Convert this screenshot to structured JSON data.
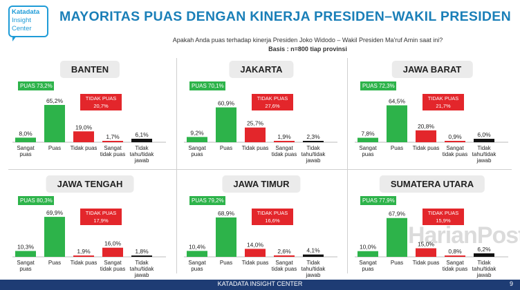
{
  "header": {
    "logo_lines": [
      "Katadata",
      "Insight",
      "Center"
    ],
    "title": "MAYORITAS PUAS DENGAN KINERJA PRESIDEN–WAKIL PRESIDEN",
    "question": "Apakah Anda puas terhadap kinerja Presiden Joko Widodo – Wakil Presiden Ma'ruf Amin saat ini?",
    "basis": "Basis : n=800 tiap provinsi"
  },
  "colors": {
    "green": "#2db34a",
    "red": "#e3262b",
    "black": "#111111",
    "title_blue": "#1a7fb8",
    "footer_navy": "#1e3c74"
  },
  "chart_data": [
    {
      "type": "bar",
      "title": "BANTEN",
      "categories": [
        "Sangat puas",
        "Puas",
        "Tidak puas",
        "Sangat tidak puas",
        "Tidak tahu/tidak jawab"
      ],
      "values": [
        8.0,
        65.2,
        19.0,
        1.7,
        6.1
      ],
      "value_labels": [
        "8,0%",
        "65,2%",
        "19,0%",
        "1,7%",
        "6,1%"
      ],
      "puas_label": "PUAS 73,2%",
      "tidak_puas_label": [
        "TIDAK PUAS",
        "20,7%"
      ]
    },
    {
      "type": "bar",
      "title": "JAKARTA",
      "categories": [
        "Sangat puas",
        "Puas",
        "Tidak puas",
        "Sangat tidak puas",
        "Tidak tahu/tidak jawab"
      ],
      "values": [
        9.2,
        60.9,
        25.7,
        1.9,
        2.3
      ],
      "value_labels": [
        "9,2%",
        "60,9%",
        "25,7%",
        "1,9%",
        "2,3%"
      ],
      "puas_label": "PUAS 70,1%",
      "tidak_puas_label": [
        "TIDAK PUAS",
        "27,6%"
      ]
    },
    {
      "type": "bar",
      "title": "JAWA BARAT",
      "categories": [
        "Sangat puas",
        "Puas",
        "Tidak puas",
        "Sangat tidak puas",
        "Tidak tahu/tidak jawab"
      ],
      "values": [
        7.8,
        64.5,
        20.8,
        0.9,
        6.0
      ],
      "value_labels": [
        "7,8%",
        "64,5%",
        "20,8%",
        "0,9%",
        "6,0%"
      ],
      "puas_label": "PUAS 72,3%",
      "tidak_puas_label": [
        "TIDAK PUAS",
        "21,7%"
      ]
    },
    {
      "type": "bar",
      "title": "JAWA TENGAH",
      "categories": [
        "Sangat puas",
        "Puas",
        "Tidak puas",
        "Sangat tidak puas",
        "Tidak tahu/tidak jawab"
      ],
      "values": [
        10.3,
        69.9,
        1.9,
        16.0,
        1.8
      ],
      "value_labels": [
        "10,3%",
        "69,9%",
        "1,9%",
        "16,0%",
        "1,8%"
      ],
      "puas_label": "PUAS 80,3%",
      "tidak_puas_label": [
        "TIDAK PUAS",
        "17,9%"
      ]
    },
    {
      "type": "bar",
      "title": "JAWA TIMUR",
      "categories": [
        "Sangat puas",
        "Puas",
        "Tidak puas",
        "Sangat tidak puas",
        "Tidak tahu/tidak jawab"
      ],
      "values": [
        10.4,
        68.9,
        14.0,
        2.6,
        4.1
      ],
      "value_labels": [
        "10,4%",
        "68,9%",
        "14,0%",
        "2,6%",
        "4,1%"
      ],
      "puas_label": "PUAS 79,2%",
      "tidak_puas_label": [
        "TIDAK PUAS",
        "16,6%"
      ]
    },
    {
      "type": "bar",
      "title": "SUMATERA UTARA",
      "categories": [
        "Sangat puas",
        "Puas",
        "Tidak puas",
        "Sangat tidak puas",
        "Tidak tahu/tidak jawab"
      ],
      "values": [
        10.0,
        67.9,
        15.0,
        0.8,
        6.2
      ],
      "value_labels": [
        "10,0%",
        "67,9%",
        "15,0%",
        "0,8%",
        "6,2%"
      ],
      "puas_label": "PUAS 77,9%",
      "tidak_puas_label": [
        "TIDAK PUAS",
        "15,9%"
      ]
    }
  ],
  "category_label_lines": [
    [
      "Sangat",
      "puas"
    ],
    [
      "Puas"
    ],
    [
      "Tidak puas"
    ],
    [
      "Sangat",
      "tidak puas"
    ],
    [
      "Tidak",
      "tahu/tidak",
      "jawab"
    ]
  ],
  "bar_colors": [
    "green",
    "green",
    "red",
    "red",
    "black"
  ],
  "watermark": "HarianPost",
  "footer": {
    "text": "KATADATA INSIGHT CENTER",
    "page_number": "9"
  }
}
